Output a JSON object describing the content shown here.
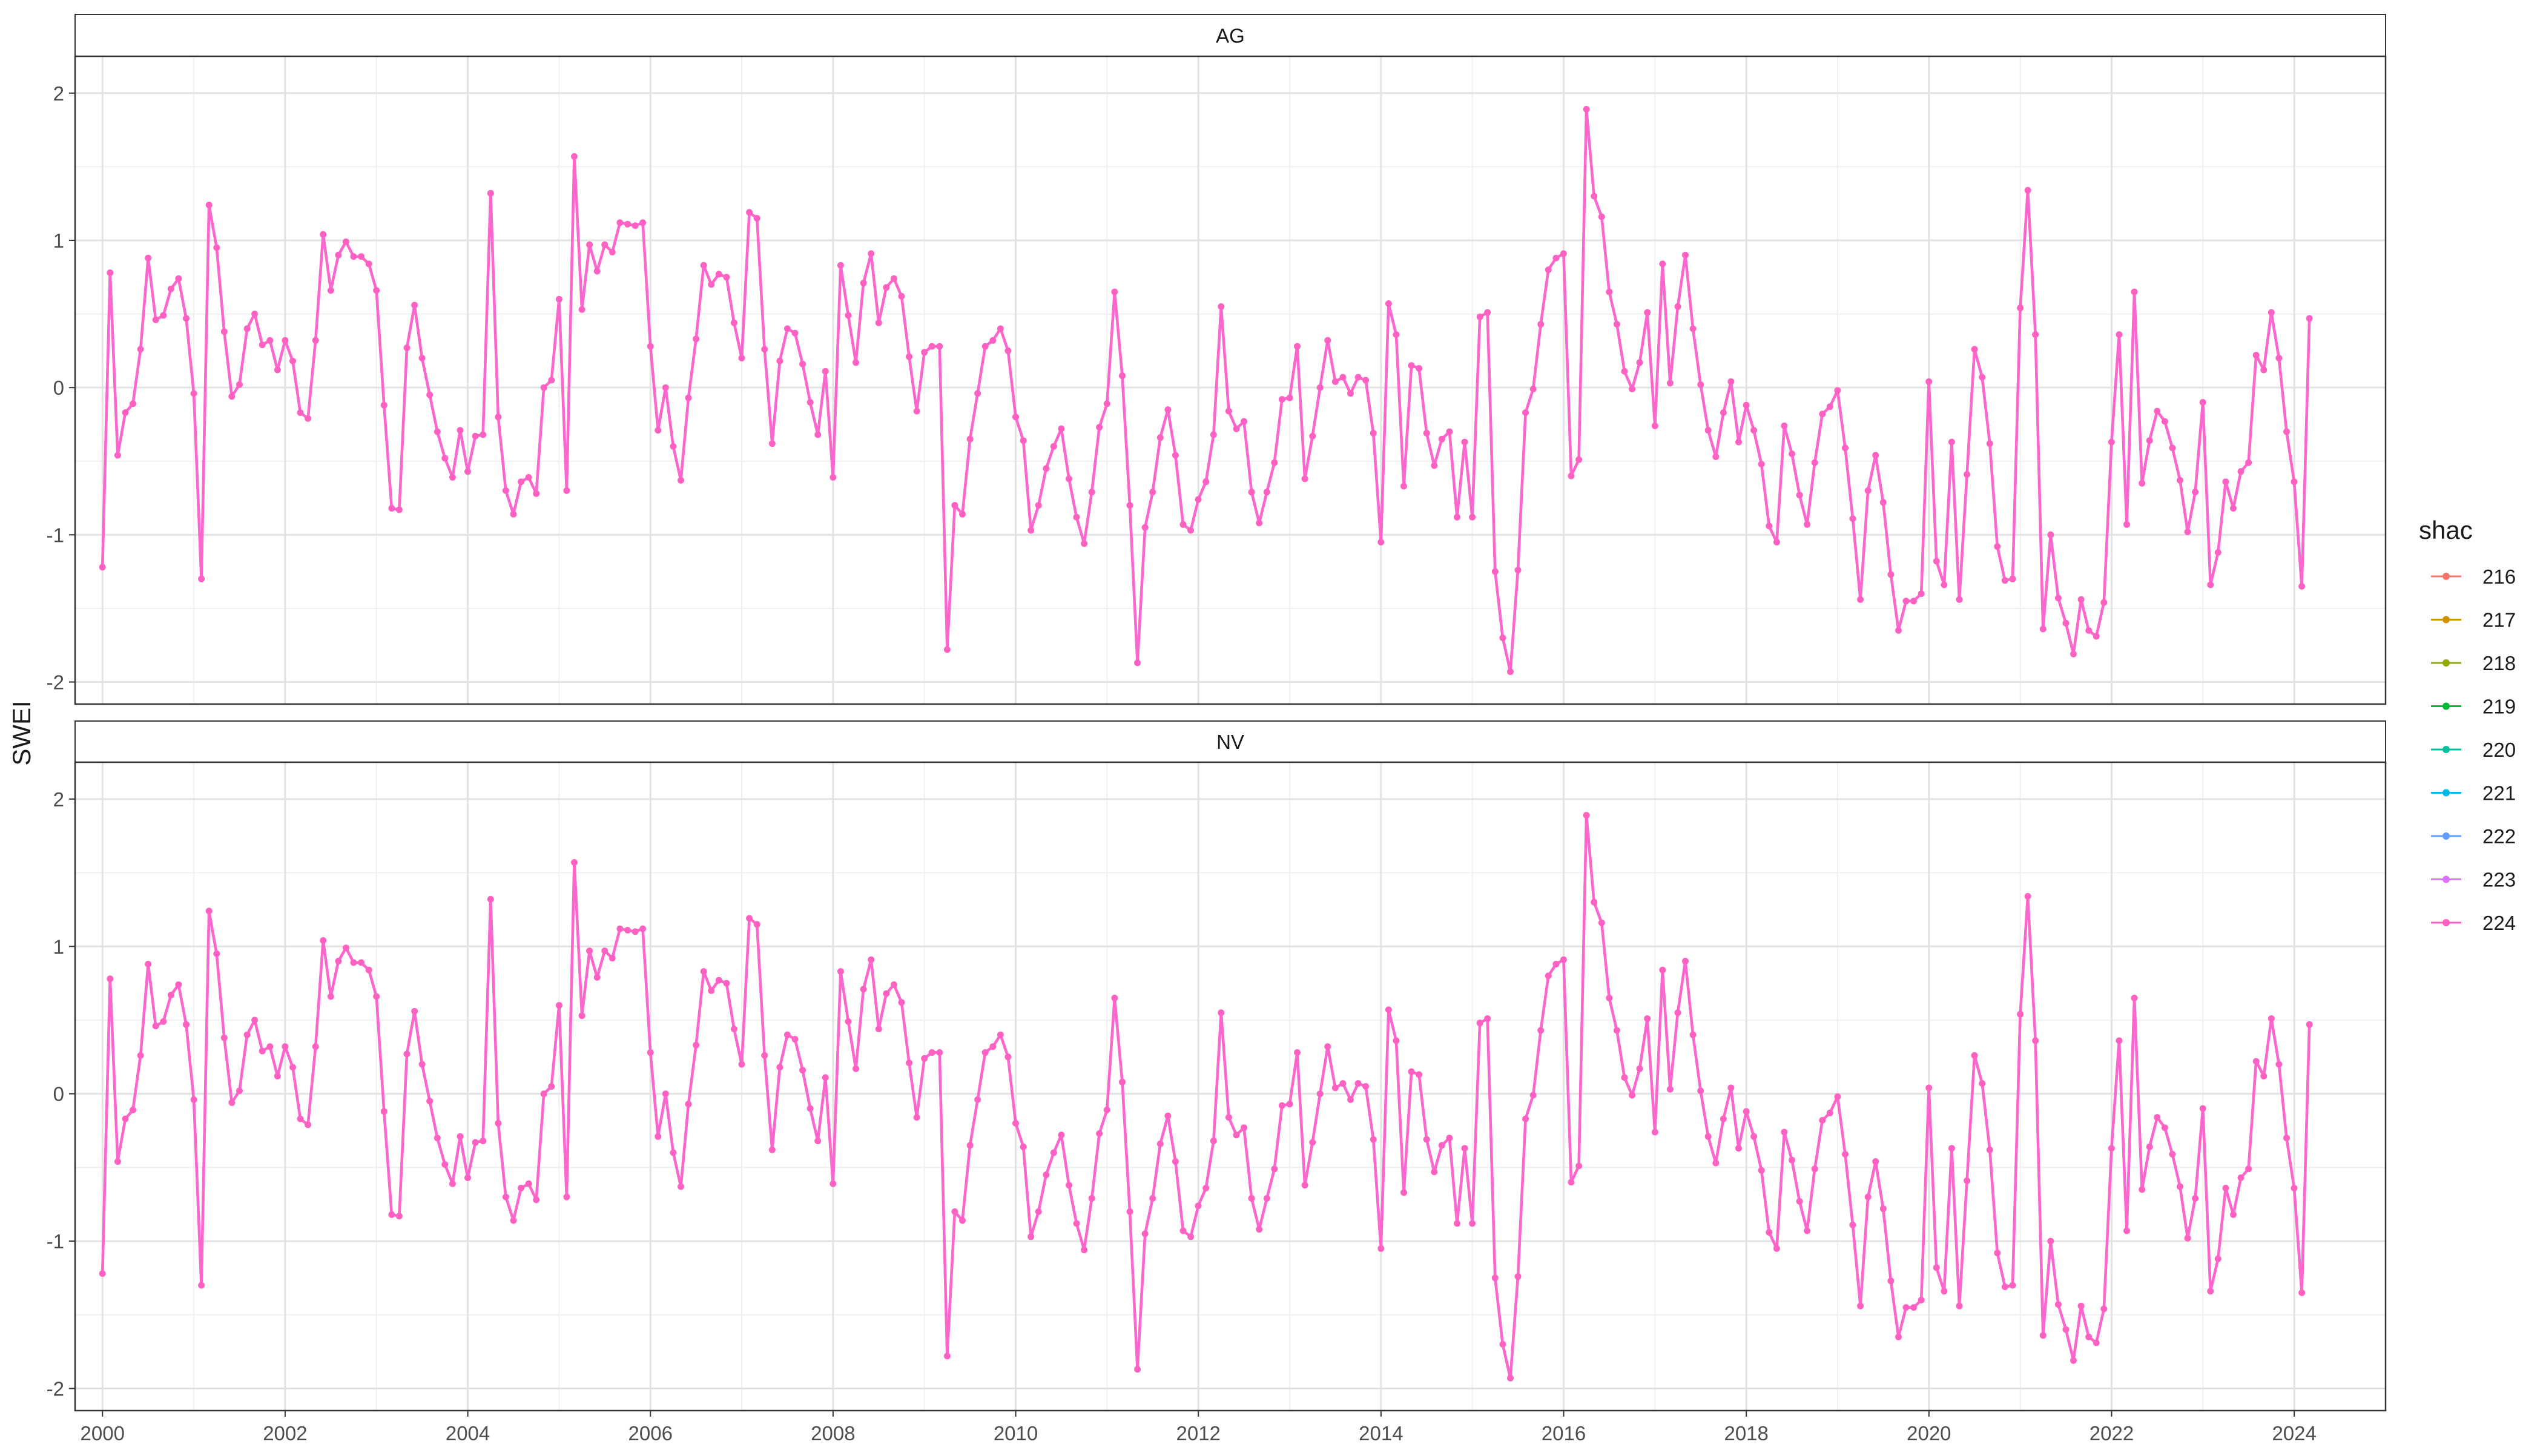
{
  "chart_data": {
    "type": "line",
    "ylabel": "SWEI",
    "xlabel": "",
    "xlim": [
      1999.7,
      2025.0
    ],
    "ylim": [
      -2.15,
      2.25
    ],
    "x_ticks": [
      2000,
      2002,
      2004,
      2006,
      2008,
      2010,
      2012,
      2014,
      2016,
      2018,
      2020,
      2022,
      2024
    ],
    "x_tick_labels": [
      "2000",
      "2002",
      "2004",
      "2006",
      "2008",
      "2010",
      "2012",
      "2014",
      "2016",
      "2018",
      "2020",
      "2022",
      "2024"
    ],
    "y_ticks": [
      -2,
      -1,
      0,
      1,
      2
    ],
    "y_tick_labels": [
      "-2",
      "-1",
      "0",
      "1",
      "2"
    ],
    "grid": true,
    "x_start": 2000.0,
    "x_step": 0.08333,
    "facets": [
      {
        "label": "AG"
      },
      {
        "label": "NV"
      }
    ],
    "legend": {
      "title": "shac",
      "position": "right",
      "entries": [
        "216",
        "217",
        "218",
        "219",
        "220",
        "221",
        "222",
        "223",
        "224"
      ],
      "colors": [
        "#F8766D",
        "#D39200",
        "#93AA00",
        "#00BA38",
        "#00C19F",
        "#00B9E3",
        "#619CFF",
        "#DB72FB",
        "#FF61C3"
      ]
    },
    "series": [
      {
        "name": "223",
        "color": "#DB72FB",
        "ref": "values"
      },
      {
        "name": "224",
        "color": "#FF61C3",
        "ref": "values"
      }
    ],
    "values": [
      -1.22,
      0.78,
      -0.46,
      -0.17,
      -0.11,
      0.26,
      0.88,
      0.46,
      0.49,
      0.67,
      0.74,
      0.47,
      -0.04,
      -1.3,
      1.24,
      0.95,
      0.38,
      -0.06,
      0.02,
      0.4,
      0.5,
      0.29,
      0.32,
      0.12,
      0.32,
      0.18,
      -0.17,
      -0.21,
      0.32,
      1.04,
      0.66,
      0.9,
      0.99,
      0.89,
      0.89,
      0.84,
      0.66,
      -0.12,
      -0.82,
      -0.83,
      0.27,
      0.56,
      0.2,
      -0.05,
      -0.3,
      -0.48,
      -0.61,
      -0.29,
      -0.57,
      -0.33,
      -0.32,
      1.32,
      -0.2,
      -0.7,
      -0.86,
      -0.64,
      -0.61,
      -0.72,
      0.0,
      0.05,
      0.6,
      -0.7,
      1.57,
      0.53,
      0.97,
      0.79,
      0.97,
      0.92,
      1.12,
      1.11,
      1.1,
      1.12,
      0.28,
      -0.29,
      0.0,
      -0.4,
      -0.63,
      -0.07,
      0.33,
      0.83,
      0.7,
      0.77,
      0.75,
      0.44,
      0.2,
      1.19,
      1.15,
      0.26,
      -0.38,
      0.18,
      0.4,
      0.37,
      0.16,
      -0.1,
      -0.32,
      0.11,
      -0.61,
      0.83,
      0.49,
      0.17,
      0.71,
      0.91,
      0.44,
      0.68,
      0.74,
      0.62,
      0.21,
      -0.16,
      0.24,
      0.28,
      0.28,
      -1.78,
      -0.8,
      -0.86,
      -0.35,
      -0.04,
      0.28,
      0.32,
      0.4,
      0.25,
      -0.2,
      -0.36,
      -0.97,
      -0.8,
      -0.55,
      -0.4,
      -0.28,
      -0.62,
      -0.88,
      -1.06,
      -0.71,
      -0.27,
      -0.11,
      0.65,
      0.08,
      -0.8,
      -1.87,
      -0.95,
      -0.71,
      -0.34,
      -0.15,
      -0.46,
      -0.93,
      -0.97,
      -0.76,
      -0.64,
      -0.32,
      0.55,
      -0.16,
      -0.28,
      -0.23,
      -0.71,
      -0.92,
      -0.71,
      -0.51,
      -0.08,
      -0.07,
      0.28,
      -0.62,
      -0.33,
      0.0,
      0.32,
      0.04,
      0.07,
      -0.04,
      0.07,
      0.05,
      -0.31,
      -1.05,
      0.57,
      0.36,
      -0.67,
      0.15,
      0.13,
      -0.31,
      -0.53,
      -0.35,
      -0.3,
      -0.88,
      -0.37,
      -0.88,
      0.48,
      0.51,
      -1.25,
      -1.7,
      -1.93,
      -1.24,
      -0.17,
      -0.01,
      0.43,
      0.8,
      0.88,
      0.91,
      -0.6,
      -0.49,
      1.89,
      1.3,
      1.16,
      0.65,
      0.43,
      0.11,
      -0.01,
      0.17,
      0.51,
      -0.26,
      0.84,
      0.03,
      0.55,
      0.9,
      0.4,
      0.02,
      -0.29,
      -0.47,
      -0.17,
      0.04,
      -0.37,
      -0.12,
      -0.29,
      -0.52,
      -0.94,
      -1.05,
      -0.26,
      -0.45,
      -0.73,
      -0.93,
      -0.51,
      -0.18,
      -0.13,
      -0.02,
      -0.41,
      -0.89,
      -1.44,
      -0.7,
      -0.46,
      -0.78,
      -1.27,
      -1.65,
      -1.45,
      -1.45,
      -1.4,
      0.04,
      -1.18,
      -1.34,
      -0.37,
      -1.44,
      -0.59,
      0.26,
      0.07,
      -0.38,
      -1.08,
      -1.31,
      -1.3,
      0.54,
      1.34,
      0.36,
      -1.64,
      -1.0,
      -1.43,
      -1.6,
      -1.81,
      -1.44,
      -1.65,
      -1.69,
      -1.46,
      -0.37,
      0.36,
      -0.93,
      0.65,
      -0.65,
      -0.36,
      -0.16,
      -0.23,
      -0.41,
      -0.63,
      -0.98,
      -0.71,
      -0.1,
      -1.34,
      -1.12,
      -0.64,
      -0.82,
      -0.57,
      -0.51,
      0.22,
      0.12,
      0.51,
      0.2,
      -0.3,
      -0.64,
      -1.35,
      0.47
    ]
  }
}
